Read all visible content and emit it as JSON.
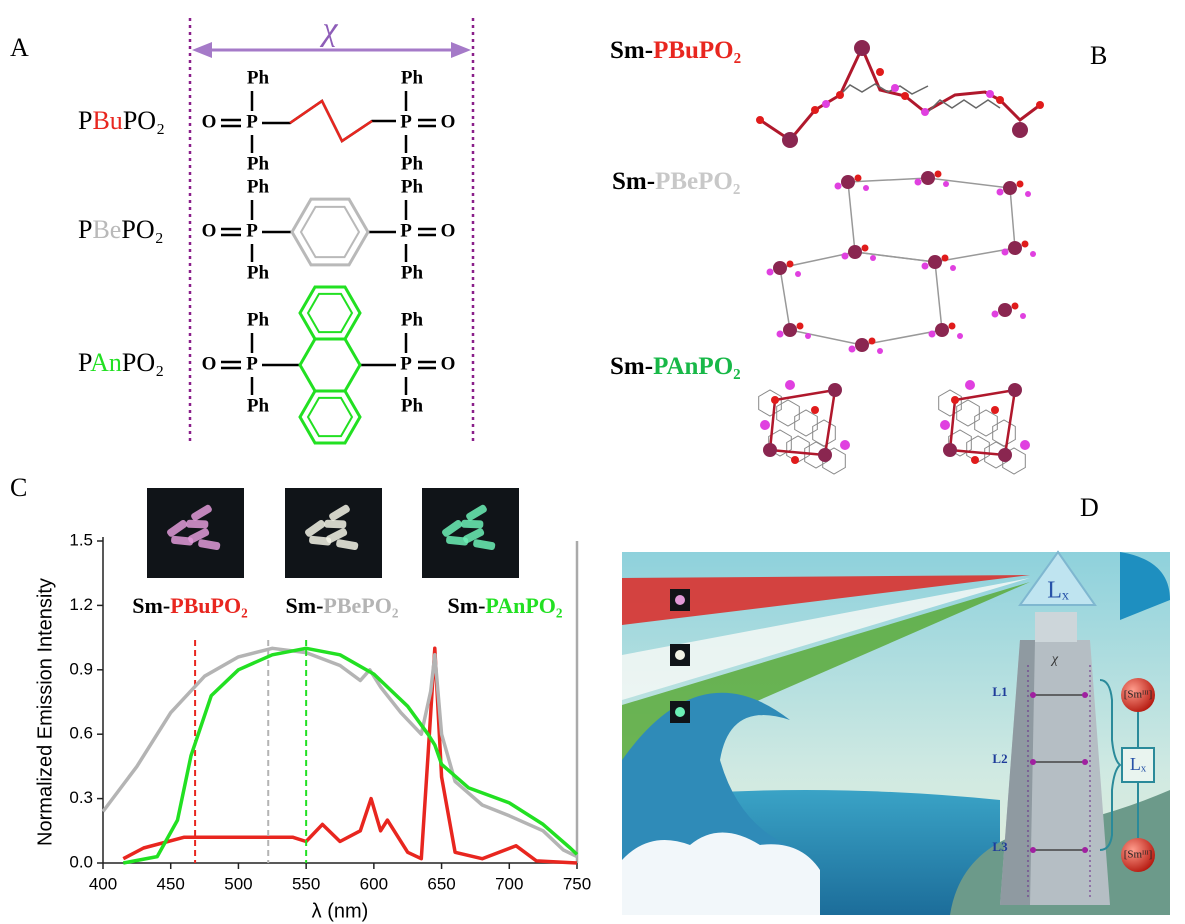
{
  "panel_a": {
    "label": "A",
    "chi": "χ",
    "ligands": [
      {
        "prefix": "P",
        "core": "Bu",
        "suffix": "PO₂",
        "color": "#e8261f"
      },
      {
        "prefix": "P",
        "core": "Be",
        "suffix": "PO₂",
        "color": "#b9b9b9"
      },
      {
        "prefix": "P",
        "core": "An",
        "suffix": "PO₂",
        "color": "#22e022"
      }
    ],
    "atoms": {
      "ph": "Ph",
      "p": "P",
      "o": "O"
    }
  },
  "panel_b": {
    "label": "B",
    "structures": [
      {
        "prefix": "Sm-",
        "name": "PBuPO₂",
        "color": "#e8261f"
      },
      {
        "prefix": "Sm-",
        "name": "PBePO₂",
        "color": "#c8c8c8"
      },
      {
        "prefix": "Sm-",
        "name": "PAnPO₂",
        "color": "#18b848"
      }
    ]
  },
  "chart_data": {
    "type": "line",
    "panel_label": "C",
    "xlabel": "λ (nm)",
    "ylabel": "Normalized Emission Intensity",
    "xlim": [
      400,
      750
    ],
    "ylim": [
      0,
      1.5
    ],
    "xticks": [
      400,
      450,
      500,
      550,
      600,
      650,
      700,
      750
    ],
    "yticks": [
      {
        "value": 0,
        "label": "0.0"
      },
      0.3,
      0.6,
      0.9,
      1.2,
      1.5
    ],
    "series": [
      {
        "name": "Sm-PBuPO₂",
        "color": "#e8261f",
        "peak": 468,
        "x": [
          415,
          430,
          460,
          500,
          540,
          550,
          562,
          575,
          590,
          598,
          605,
          610,
          625,
          635,
          640,
          645,
          650,
          660,
          680,
          705,
          720,
          750
        ],
        "values": [
          0.02,
          0.07,
          0.12,
          0.12,
          0.12,
          0.1,
          0.18,
          0.1,
          0.15,
          0.3,
          0.15,
          0.2,
          0.05,
          0.02,
          0.5,
          1.0,
          0.4,
          0.05,
          0.02,
          0.08,
          0.01,
          0.0
        ]
      },
      {
        "name": "Sm-PBePO₂",
        "color": "#b4b4b4",
        "peak": 522,
        "x": [
          400,
          425,
          450,
          475,
          500,
          525,
          550,
          575,
          590,
          597,
          605,
          620,
          635,
          642,
          645,
          650,
          660,
          680,
          700,
          725,
          740,
          750
        ],
        "values": [
          0.24,
          0.45,
          0.7,
          0.87,
          0.96,
          1.0,
          0.98,
          0.92,
          0.85,
          0.9,
          0.82,
          0.7,
          0.6,
          0.8,
          0.97,
          0.6,
          0.38,
          0.27,
          0.22,
          0.15,
          0.06,
          0.03
        ]
      },
      {
        "name": "Sm-PAnPO₂",
        "color": "#22e022",
        "peak": 550,
        "x": [
          415,
          440,
          455,
          465,
          480,
          500,
          525,
          550,
          575,
          600,
          625,
          640,
          645,
          650,
          670,
          700,
          725,
          745,
          750
        ],
        "values": [
          0.0,
          0.03,
          0.2,
          0.5,
          0.78,
          0.9,
          0.97,
          1.0,
          0.97,
          0.88,
          0.73,
          0.6,
          0.55,
          0.46,
          0.35,
          0.28,
          0.18,
          0.07,
          0.04
        ]
      }
    ]
  },
  "panel_d": {
    "label": "D",
    "lx": "Lₓ",
    "chi": "χ",
    "levels": [
      "L1",
      "L2",
      "L3"
    ],
    "sm": "[Smᴵᴵᴵ]"
  }
}
